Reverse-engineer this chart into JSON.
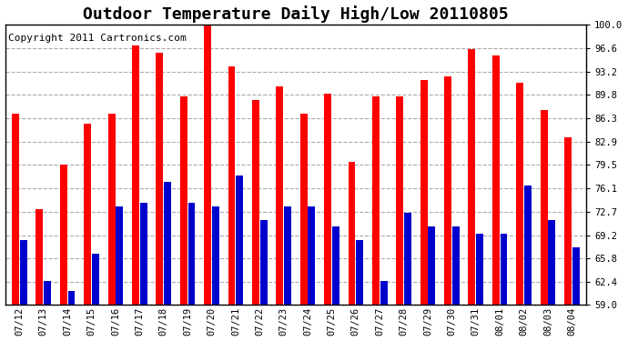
{
  "title": "Outdoor Temperature Daily High/Low 20110805",
  "copyright": "Copyright 2011 Cartronics.com",
  "dates": [
    "07/12",
    "07/13",
    "07/14",
    "07/15",
    "07/16",
    "07/17",
    "07/18",
    "07/19",
    "07/20",
    "07/21",
    "07/22",
    "07/23",
    "07/24",
    "07/25",
    "07/26",
    "07/27",
    "07/28",
    "07/29",
    "07/30",
    "07/31",
    "08/01",
    "08/02",
    "08/03",
    "08/04"
  ],
  "highs": [
    87.0,
    73.0,
    79.5,
    85.5,
    87.0,
    97.0,
    96.0,
    89.5,
    100.0,
    94.0,
    89.0,
    91.0,
    87.0,
    90.0,
    80.0,
    89.5,
    89.5,
    92.0,
    92.5,
    96.5,
    95.5,
    91.5,
    87.5,
    83.5
  ],
  "lows": [
    68.5,
    62.5,
    61.0,
    66.5,
    73.5,
    74.0,
    77.0,
    74.0,
    73.5,
    78.0,
    71.5,
    73.5,
    73.5,
    70.5,
    68.5,
    62.5,
    72.5,
    70.5,
    70.5,
    69.5,
    69.5,
    76.5,
    71.5,
    67.5
  ],
  "high_color": "#ff0000",
  "low_color": "#0000cc",
  "bg_color": "#ffffff",
  "plot_bg_color": "#ffffff",
  "grid_color": "#aaaaaa",
  "ymin": 59.0,
  "ymax": 100.0,
  "yticks": [
    59.0,
    62.4,
    65.8,
    69.2,
    72.7,
    76.1,
    79.5,
    82.9,
    86.3,
    89.8,
    93.2,
    96.6,
    100.0
  ],
  "title_fontsize": 13,
  "copyright_fontsize": 8,
  "tick_fontsize": 7.5
}
